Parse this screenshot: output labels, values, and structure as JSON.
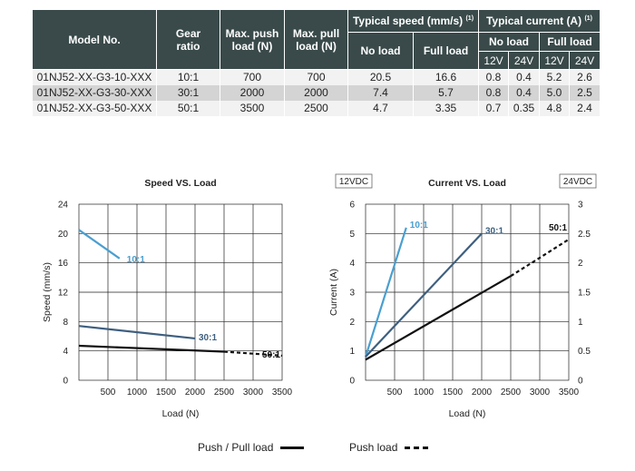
{
  "table": {
    "headers": {
      "model": "Model No.",
      "gear": "Gear ratio",
      "push": "Max. push load (N)",
      "pull": "Max. pull load (N)",
      "speed": "Typical speed (mm/s)",
      "speed_note": "(1)",
      "current": "Typical current (A)",
      "current_note": "(1)",
      "no_load": "No load",
      "full_load": "Full load",
      "v12": "12V",
      "v24": "24V"
    },
    "rows": [
      {
        "model": "01NJ52-XX-G3-10-XXX",
        "gear": "10:1",
        "push": "700",
        "pull": "700",
        "speed_no": "20.5",
        "speed_full": "16.6",
        "cur_no_12": "0.8",
        "cur_no_24": "0.4",
        "cur_full_12": "5.2",
        "cur_full_24": "2.6"
      },
      {
        "model": "01NJ52-XX-G3-30-XXX",
        "gear": "30:1",
        "push": "2000",
        "pull": "2000",
        "speed_no": "7.4",
        "speed_full": "5.7",
        "cur_no_12": "0.8",
        "cur_no_24": "0.4",
        "cur_full_12": "5.0",
        "cur_full_24": "2.5"
      },
      {
        "model": "01NJ52-XX-G3-50-XXX",
        "gear": "50:1",
        "push": "3500",
        "pull": "2500",
        "speed_no": "4.7",
        "speed_full": "3.35",
        "cur_no_12": "0.7",
        "cur_no_24": "0.35",
        "cur_full_12": "4.8",
        "cur_full_24": "2.4"
      }
    ]
  },
  "colors": {
    "header_bg": "#3a4a4a",
    "row_light": "#f2f2f2",
    "row_dark": "#d4d4d4",
    "series_10": "#4a9fd0",
    "series_30": "#3e5f7f",
    "series_50": "#111111"
  },
  "chart_data": [
    {
      "type": "line",
      "title": "Speed VS. Load",
      "xlabel": "Load (N)",
      "ylabel": "Speed (mm/s)",
      "xlim": [
        0,
        3500
      ],
      "ylim": [
        0,
        24
      ],
      "xticks": [
        500,
        1000,
        1500,
        2000,
        2500,
        3000,
        3500
      ],
      "yticks": [
        0,
        4,
        8,
        12,
        16,
        20,
        24
      ],
      "grid": true,
      "series": [
        {
          "name": "10:1",
          "color": "#4a9fd0",
          "points": [
            [
              0,
              20.5
            ],
            [
              700,
              16.6
            ]
          ],
          "dashed_from": null
        },
        {
          "name": "30:1",
          "color": "#3e5f7f",
          "points": [
            [
              0,
              7.4
            ],
            [
              2000,
              5.7
            ]
          ],
          "dashed_from": null
        },
        {
          "name": "50:1",
          "color": "#111111",
          "points": [
            [
              0,
              4.7
            ],
            [
              2500,
              3.9
            ],
            [
              3500,
              3.35
            ]
          ],
          "dashed_from": 2500
        }
      ]
    },
    {
      "type": "line",
      "title": "Current VS. Load",
      "xlabel": "Load (N)",
      "ylabel": "Current (A)",
      "left_axis_box": "12VDC",
      "right_axis_box": "24VDC",
      "xlim": [
        0,
        3500
      ],
      "ylim": [
        0,
        6
      ],
      "ylim_right": [
        0,
        3
      ],
      "xticks": [
        500,
        1000,
        1500,
        2000,
        2500,
        3000,
        3500
      ],
      "yticks": [
        0,
        1,
        2,
        3,
        4,
        5,
        6
      ],
      "yticks_right": [
        "0",
        "0.5",
        "1",
        "1.5",
        "2",
        "2.5",
        "3"
      ],
      "grid": true,
      "series": [
        {
          "name": "10:1",
          "color": "#4a9fd0",
          "points": [
            [
              0,
              0.8
            ],
            [
              700,
              5.2
            ]
          ],
          "dashed_from": null
        },
        {
          "name": "30:1",
          "color": "#3e5f7f",
          "points": [
            [
              0,
              0.8
            ],
            [
              2000,
              5.0
            ]
          ],
          "dashed_from": null
        },
        {
          "name": "50:1",
          "color": "#111111",
          "points": [
            [
              0,
              0.7
            ],
            [
              2500,
              3.55
            ],
            [
              3500,
              4.8
            ]
          ],
          "dashed_from": 2500
        }
      ]
    }
  ],
  "legend": {
    "solid_label": "Push / Pull load",
    "dashed_label": "Push load"
  }
}
